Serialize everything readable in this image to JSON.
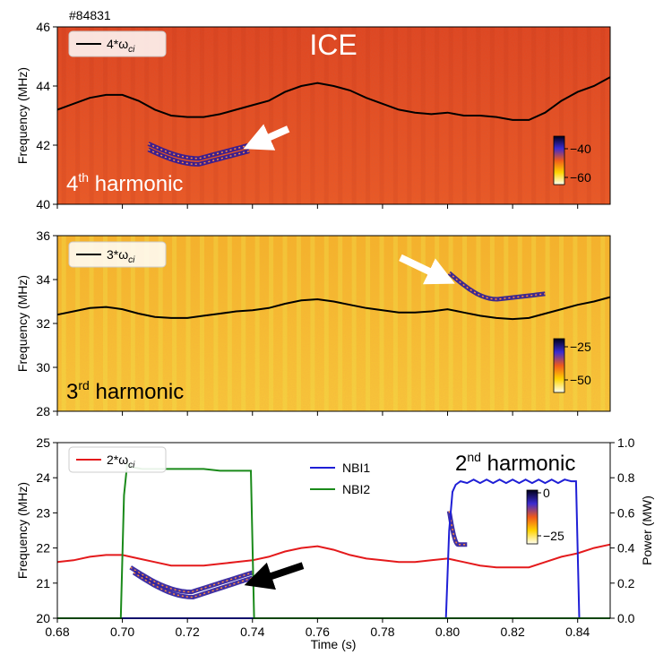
{
  "shot_label": "#84831",
  "chart_data": [
    {
      "type": "heatmap",
      "panel_title": "ICE",
      "panel_label_base": "4",
      "panel_label_sup": "th",
      "panel_label_rest": " harmonic",
      "ylabel": "Frequency (MHz)",
      "xlim": [
        0.68,
        0.85
      ],
      "ylim": [
        40,
        46
      ],
      "yticks": [
        "40",
        "42",
        "44",
        "46"
      ],
      "legend": {
        "label": "4*ω",
        "label_sub": "ci",
        "color": "#000000"
      },
      "line_series": {
        "name": "4*ωci",
        "x": [
          0.68,
          0.685,
          0.69,
          0.695,
          0.7,
          0.705,
          0.71,
          0.715,
          0.72,
          0.725,
          0.73,
          0.735,
          0.74,
          0.745,
          0.75,
          0.755,
          0.76,
          0.765,
          0.77,
          0.775,
          0.78,
          0.785,
          0.79,
          0.795,
          0.8,
          0.805,
          0.81,
          0.815,
          0.82,
          0.825,
          0.83,
          0.835,
          0.84,
          0.845,
          0.85
        ],
        "y": [
          43.2,
          43.4,
          43.6,
          43.7,
          43.7,
          43.5,
          43.2,
          43.0,
          42.95,
          42.95,
          43.05,
          43.2,
          43.35,
          43.5,
          43.8,
          44.0,
          44.1,
          44.0,
          43.85,
          43.6,
          43.4,
          43.2,
          43.1,
          43.05,
          43.1,
          43.0,
          43.0,
          42.95,
          42.85,
          42.85,
          43.1,
          43.5,
          43.8,
          44.0,
          44.3
        ]
      },
      "colorbar": {
        "ticks": [
          "−40",
          "−60"
        ],
        "range": [
          -65,
          -35
        ]
      },
      "annotation_arrow": {
        "color": "white",
        "tip": [
          0.74,
          42.0
        ],
        "tail": [
          0.751,
          42.55
        ]
      },
      "emission_bands": [
        {
          "x_start": 0.708,
          "x_end": 0.739,
          "f_start": 42.05,
          "f_min": 41.55,
          "f_end": 42.0
        },
        {
          "x_start": 0.708,
          "x_end": 0.739,
          "f_start": 41.85,
          "f_min": 41.35,
          "f_end": 41.8
        }
      ]
    },
    {
      "type": "heatmap",
      "panel_label_base": "3",
      "panel_label_sup": "rd",
      "panel_label_rest": " harmonic",
      "ylabel": "Frequency (MHz)",
      "xlim": [
        0.68,
        0.85
      ],
      "ylim": [
        28,
        36
      ],
      "yticks": [
        "28",
        "30",
        "32",
        "34",
        "36"
      ],
      "legend": {
        "label": "3*ω",
        "label_sub": "ci",
        "color": "#000000"
      },
      "line_series": {
        "name": "3*ωci",
        "x": [
          0.68,
          0.685,
          0.69,
          0.695,
          0.7,
          0.705,
          0.71,
          0.715,
          0.72,
          0.725,
          0.73,
          0.735,
          0.74,
          0.745,
          0.75,
          0.755,
          0.76,
          0.765,
          0.77,
          0.775,
          0.78,
          0.785,
          0.79,
          0.795,
          0.8,
          0.805,
          0.81,
          0.815,
          0.82,
          0.825,
          0.83,
          0.835,
          0.84,
          0.845,
          0.85
        ],
        "y": [
          32.4,
          32.55,
          32.7,
          32.75,
          32.65,
          32.45,
          32.3,
          32.25,
          32.25,
          32.35,
          32.45,
          32.55,
          32.6,
          32.7,
          32.9,
          33.05,
          33.1,
          33.0,
          32.85,
          32.7,
          32.6,
          32.5,
          32.5,
          32.55,
          32.65,
          32.5,
          32.35,
          32.25,
          32.2,
          32.25,
          32.45,
          32.65,
          32.85,
          33.0,
          33.2
        ]
      },
      "colorbar": {
        "ticks": [
          "−25",
          "−50"
        ],
        "range": [
          -55,
          -20
        ]
      },
      "annotation_arrow": {
        "color": "white",
        "tip": [
          0.7995,
          34.0
        ],
        "tail": [
          0.7855,
          35.0
        ]
      },
      "emission_bands": [
        {
          "x_start": 0.8005,
          "x_end": 0.83,
          "f_start": 34.3,
          "f_min": 33.1,
          "f_end": 33.35
        }
      ]
    },
    {
      "type": "line",
      "panel_label_base": "2",
      "panel_label_sup": "nd",
      "panel_label_rest": " harmonic",
      "xlabel": "Time (s)",
      "ylabel": "Frequency (MHz)",
      "y2label": "Power (MW)",
      "xlim": [
        0.68,
        0.85
      ],
      "ylim": [
        20,
        25
      ],
      "y2lim": [
        0.0,
        1.0
      ],
      "xticks": [
        "0.68",
        "0.70",
        "0.72",
        "0.74",
        "0.76",
        "0.78",
        "0.80",
        "0.82",
        "0.84"
      ],
      "yticks": [
        "20",
        "21",
        "22",
        "23",
        "24",
        "25"
      ],
      "y2ticks": [
        "0.0",
        "0.2",
        "0.4",
        "0.6",
        "0.8",
        "1.0"
      ],
      "colorbar": {
        "ticks": [
          "0",
          "−25"
        ],
        "range": [
          -30,
          0
        ]
      },
      "annotation_arrow": {
        "color": "black",
        "tip": [
          0.7405,
          21.0
        ],
        "tail": [
          0.7555,
          21.5
        ]
      },
      "series": [
        {
          "name": "2*ωci",
          "legend_label": "2*ω",
          "legend_sub": "ci",
          "color": "#e41a1c",
          "axis": "left",
          "x": [
            0.68,
            0.685,
            0.69,
            0.695,
            0.7,
            0.705,
            0.71,
            0.715,
            0.72,
            0.725,
            0.73,
            0.735,
            0.74,
            0.745,
            0.75,
            0.755,
            0.76,
            0.765,
            0.77,
            0.775,
            0.78,
            0.785,
            0.79,
            0.795,
            0.8,
            0.805,
            0.81,
            0.815,
            0.82,
            0.825,
            0.83,
            0.835,
            0.84,
            0.845,
            0.85
          ],
          "y": [
            21.6,
            21.65,
            21.75,
            21.8,
            21.8,
            21.7,
            21.6,
            21.5,
            21.5,
            21.5,
            21.55,
            21.6,
            21.65,
            21.75,
            21.9,
            22.0,
            22.05,
            21.95,
            21.8,
            21.7,
            21.65,
            21.6,
            21.6,
            21.65,
            21.7,
            21.6,
            21.5,
            21.45,
            21.45,
            21.45,
            21.6,
            21.75,
            21.85,
            22.0,
            22.1
          ]
        },
        {
          "name": "NBI1",
          "color": "#1f1fd6",
          "axis": "right",
          "x": [
            0.68,
            0.7995,
            0.8005,
            0.8015,
            0.8025,
            0.804,
            0.806,
            0.808,
            0.81,
            0.812,
            0.814,
            0.816,
            0.818,
            0.82,
            0.822,
            0.824,
            0.826,
            0.828,
            0.83,
            0.832,
            0.834,
            0.836,
            0.838,
            0.8395,
            0.8405,
            0.85
          ],
          "y": [
            0.0,
            0.0,
            0.5,
            0.72,
            0.76,
            0.78,
            0.77,
            0.79,
            0.77,
            0.79,
            0.77,
            0.79,
            0.77,
            0.79,
            0.77,
            0.79,
            0.77,
            0.79,
            0.77,
            0.79,
            0.77,
            0.79,
            0.78,
            0.78,
            0.0,
            0.0
          ]
        },
        {
          "name": "NBI2",
          "color": "#1a8a1a",
          "axis": "right",
          "x": [
            0.68,
            0.6995,
            0.7005,
            0.7015,
            0.703,
            0.706,
            0.71,
            0.715,
            0.72,
            0.725,
            0.73,
            0.735,
            0.7395,
            0.7405,
            0.85
          ],
          "y": [
            0.0,
            0.0,
            0.7,
            0.88,
            0.86,
            0.85,
            0.85,
            0.85,
            0.85,
            0.85,
            0.84,
            0.84,
            0.84,
            0.0,
            0.0
          ]
        }
      ],
      "emission_bands": [
        {
          "x_start": 0.7025,
          "x_end": 0.74,
          "f_start": 21.45,
          "f_min": 20.75,
          "f_end": 21.3
        },
        {
          "x_start": 0.7035,
          "x_end": 0.74,
          "f_start": 21.3,
          "f_min": 20.6,
          "f_end": 21.15
        },
        {
          "x_start": 0.8005,
          "x_end": 0.806,
          "f_start": 23.05,
          "f_min": 22.1,
          "f_end": 22.1
        }
      ]
    }
  ]
}
